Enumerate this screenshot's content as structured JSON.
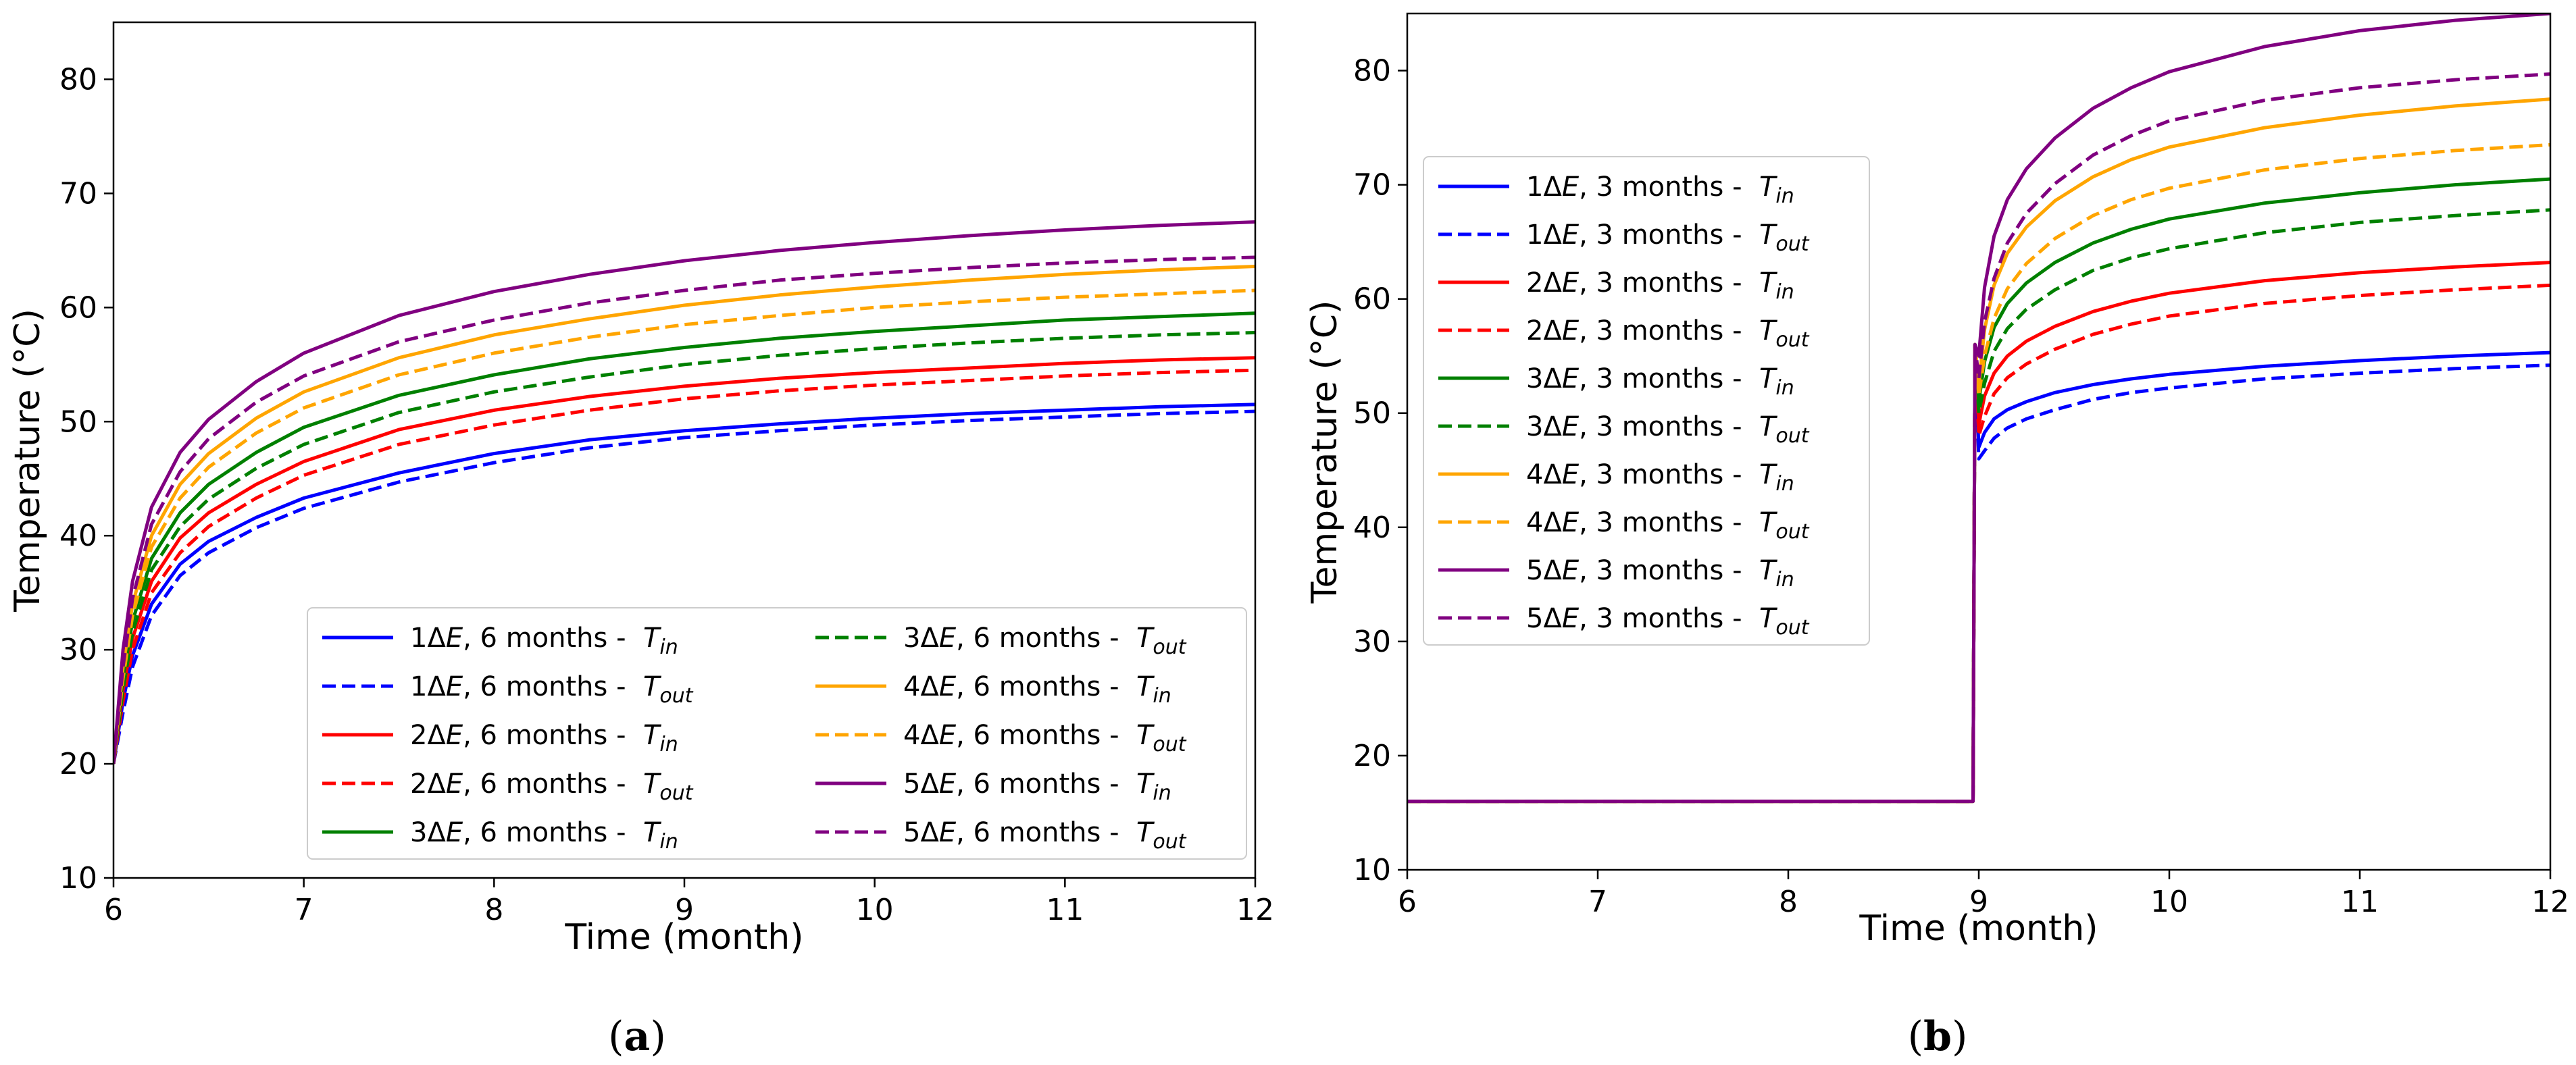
{
  "chart_data": [
    {
      "type": "line",
      "caption": "a",
      "xlabel": "Time (month)",
      "ylabel": "Temperature (°C)",
      "xlim": [
        6,
        12
      ],
      "ylim": [
        10,
        85
      ],
      "xticks": [
        "6",
        "7",
        "8",
        "9",
        "10",
        "11",
        "12"
      ],
      "yticks": [
        "10",
        "20",
        "30",
        "40",
        "50",
        "60",
        "70",
        "80"
      ],
      "grid": false,
      "legend_position": "lower-right",
      "legend_columns": 2,
      "x": [
        6,
        6.05,
        6.1,
        6.2,
        6.35,
        6.5,
        6.75,
        7,
        7.5,
        8,
        8.5,
        9,
        9.5,
        10,
        10.5,
        11,
        11.5,
        12
      ],
      "series": [
        {
          "name": "1ΔE, 6 months - ",
          "subscript": "in",
          "color": "#0000ff",
          "dash": "solid",
          "values": [
            20,
            25.5,
            29.5,
            34,
            37.5,
            39.5,
            41.6,
            43.3,
            45.5,
            47.2,
            48.4,
            49.2,
            49.8,
            50.3,
            50.7,
            51.0,
            51.3,
            51.5
          ]
        },
        {
          "name": "1ΔE, 6 months - ",
          "subscript": "out",
          "color": "#0000ff",
          "dash": "dashed",
          "values": [
            20,
            24.5,
            28.5,
            33,
            36.5,
            38.5,
            40.7,
            42.4,
            44.7,
            46.4,
            47.7,
            48.6,
            49.2,
            49.7,
            50.1,
            50.4,
            50.7,
            50.9
          ]
        },
        {
          "name": "2ΔE, 6 months - ",
          "subscript": "in",
          "color": "#ff0000",
          "dash": "solid",
          "values": [
            20,
            26.5,
            31,
            36,
            39.8,
            42,
            44.5,
            46.5,
            49.3,
            51,
            52.2,
            53.1,
            53.8,
            54.3,
            54.7,
            55.1,
            55.4,
            55.6
          ]
        },
        {
          "name": "2ΔE, 6 months - ",
          "subscript": "out",
          "color": "#ff0000",
          "dash": "dashed",
          "values": [
            20,
            25.5,
            30,
            35,
            38.5,
            40.8,
            43.3,
            45.3,
            48,
            49.7,
            51,
            52,
            52.7,
            53.2,
            53.6,
            54,
            54.3,
            54.5
          ]
        },
        {
          "name": "3ΔE, 6 months - ",
          "subscript": "in",
          "color": "#008000",
          "dash": "solid",
          "values": [
            20,
            27.5,
            32.5,
            38,
            42,
            44.5,
            47.3,
            49.5,
            52.3,
            54.1,
            55.5,
            56.5,
            57.3,
            57.9,
            58.4,
            58.9,
            59.2,
            59.5
          ]
        },
        {
          "name": "3ΔE, 6 months - ",
          "subscript": "out",
          "color": "#008000",
          "dash": "dashed",
          "values": [
            20,
            26.5,
            31.5,
            37,
            40.8,
            43.2,
            45.9,
            48,
            50.8,
            52.6,
            53.9,
            55,
            55.8,
            56.4,
            56.9,
            57.3,
            57.6,
            57.8
          ]
        },
        {
          "name": "4ΔE, 6 months - ",
          "subscript": "in",
          "color": "#ffa500",
          "dash": "solid",
          "values": [
            20,
            28.5,
            34,
            40,
            44.5,
            47.2,
            50.3,
            52.6,
            55.6,
            57.6,
            59,
            60.2,
            61.1,
            61.8,
            62.4,
            62.9,
            63.3,
            63.6
          ]
        },
        {
          "name": "4ΔE, 6 months - ",
          "subscript": "out",
          "color": "#ffa500",
          "dash": "dashed",
          "values": [
            20,
            27.5,
            33,
            39,
            43.3,
            46,
            49,
            51.2,
            54.1,
            56,
            57.4,
            58.5,
            59.3,
            60,
            60.5,
            60.9,
            61.2,
            61.5
          ]
        },
        {
          "name": "5ΔE, 6 months - ",
          "subscript": "in",
          "color": "#800080",
          "dash": "solid",
          "values": [
            20,
            30,
            36,
            42.5,
            47.3,
            50.2,
            53.5,
            56,
            59.3,
            61.4,
            62.9,
            64.1,
            65,
            65.7,
            66.3,
            66.8,
            67.2,
            67.5
          ]
        },
        {
          "name": "5ΔE, 6 months - ",
          "subscript": "out",
          "color": "#800080",
          "dash": "dashed",
          "values": [
            20,
            28.5,
            34.5,
            41,
            45.6,
            48.5,
            51.7,
            54,
            57,
            58.9,
            60.4,
            61.5,
            62.4,
            63,
            63.5,
            63.9,
            64.2,
            64.4
          ]
        }
      ]
    },
    {
      "type": "line",
      "caption": "b",
      "xlabel": "Time (month)",
      "ylabel": "Temperature (°C)",
      "xlim": [
        6,
        12
      ],
      "ylim": [
        10,
        85
      ],
      "xticks": [
        "6",
        "7",
        "8",
        "9",
        "10",
        "11",
        "12"
      ],
      "yticks": [
        "10",
        "20",
        "30",
        "40",
        "50",
        "60",
        "70",
        "80"
      ],
      "grid": false,
      "legend_position": "upper-left",
      "legend_columns": 1,
      "x": [
        6,
        8.97,
        8.98,
        9.0,
        9.03,
        9.08,
        9.15,
        9.25,
        9.4,
        9.6,
        9.8,
        10,
        10.5,
        11,
        11.5,
        12
      ],
      "series": [
        {
          "name": "1ΔE, 3 months - ",
          "subscript": "in",
          "color": "#0000ff",
          "dash": "solid",
          "values": [
            16,
            16,
            56,
            47,
            48.3,
            49.5,
            50.3,
            51,
            51.8,
            52.5,
            53,
            53.4,
            54.1,
            54.6,
            55,
            55.3
          ]
        },
        {
          "name": "1ΔE, 3 months - ",
          "subscript": "out",
          "color": "#0000ff",
          "dash": "dashed",
          "values": [
            16,
            16,
            56,
            46,
            46.7,
            47.8,
            48.7,
            49.5,
            50.3,
            51.2,
            51.8,
            52.2,
            53,
            53.5,
            53.9,
            54.2
          ]
        },
        {
          "name": "2ΔE, 3 months - ",
          "subscript": "in",
          "color": "#ff0000",
          "dash": "solid",
          "values": [
            16,
            16,
            56,
            49,
            51.5,
            53.5,
            55,
            56.3,
            57.6,
            58.9,
            59.8,
            60.5,
            61.6,
            62.3,
            62.8,
            63.2
          ]
        },
        {
          "name": "2ΔE, 3 months - ",
          "subscript": "out",
          "color": "#ff0000",
          "dash": "dashed",
          "values": [
            16,
            16,
            56,
            48,
            49.7,
            51.7,
            53.1,
            54.3,
            55.6,
            56.9,
            57.8,
            58.5,
            59.6,
            60.3,
            60.8,
            61.2
          ]
        },
        {
          "name": "3ΔE, 3 months - ",
          "subscript": "in",
          "color": "#008000",
          "dash": "solid",
          "values": [
            16,
            16,
            56,
            51,
            54.5,
            57.5,
            59.6,
            61.4,
            63.2,
            64.9,
            66.1,
            67,
            68.4,
            69.3,
            70,
            70.5
          ]
        },
        {
          "name": "3ΔE, 3 months - ",
          "subscript": "out",
          "color": "#008000",
          "dash": "dashed",
          "values": [
            16,
            16,
            56,
            50,
            52.6,
            55.4,
            57.4,
            59.1,
            60.8,
            62.5,
            63.6,
            64.4,
            65.8,
            66.7,
            67.3,
            67.8
          ]
        },
        {
          "name": "4ΔE, 3 months - ",
          "subscript": "in",
          "color": "#ffa500",
          "dash": "solid",
          "values": [
            16,
            16,
            56,
            52.5,
            57.3,
            61.2,
            64,
            66.3,
            68.6,
            70.7,
            72.2,
            73.3,
            75,
            76.1,
            76.9,
            77.5
          ]
        },
        {
          "name": "4ΔE, 3 months - ",
          "subscript": "out",
          "color": "#ffa500",
          "dash": "dashed",
          "values": [
            16,
            16,
            56,
            51.5,
            55,
            58.3,
            60.9,
            63.1,
            65.3,
            67.3,
            68.7,
            69.7,
            71.3,
            72.3,
            73,
            73.5
          ]
        },
        {
          "name": "5ΔE, 3 months - ",
          "subscript": "in",
          "color": "#800080",
          "dash": "solid",
          "values": [
            16,
            16,
            56,
            55,
            61,
            65.5,
            68.7,
            71.4,
            74.1,
            76.7,
            78.5,
            79.9,
            82.1,
            83.5,
            84.4,
            85
          ]
        },
        {
          "name": "5ΔE, 3 months - ",
          "subscript": "out",
          "color": "#800080",
          "dash": "dashed",
          "values": [
            16,
            16,
            56,
            53,
            58,
            61.8,
            64.9,
            67.5,
            70.1,
            72.6,
            74.3,
            75.6,
            77.4,
            78.5,
            79.2,
            79.7
          ]
        }
      ]
    }
  ]
}
